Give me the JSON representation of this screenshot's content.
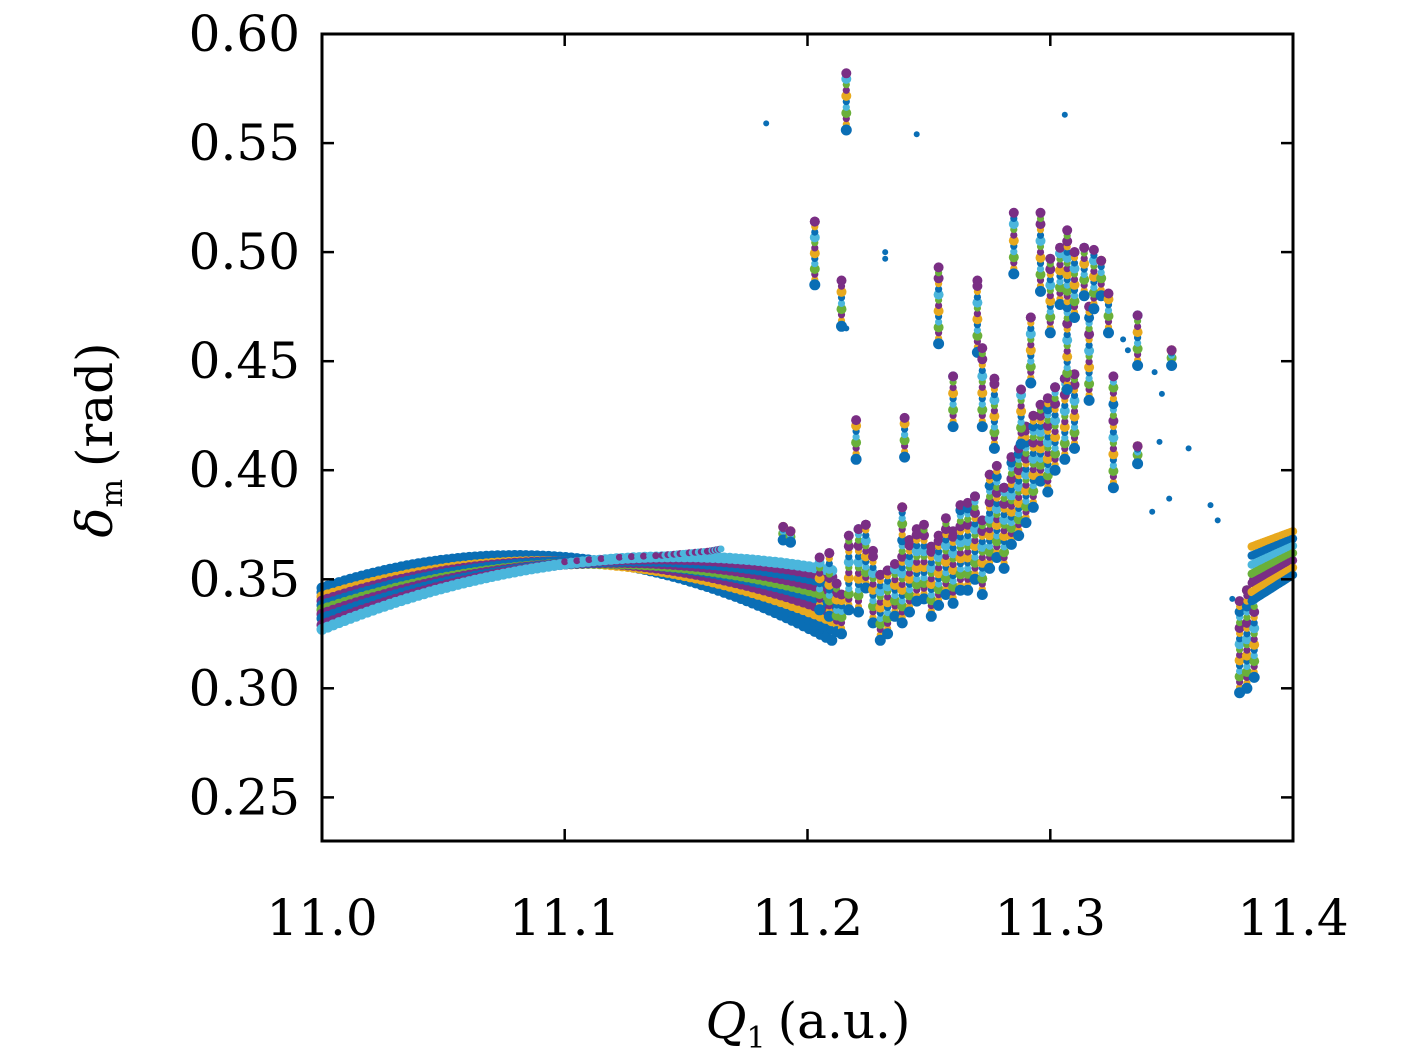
{
  "chart_data": {
    "type": "scatter",
    "title": "",
    "xlabel": {
      "symbol": "Q",
      "subscript": "1",
      "unit": "(a.u.)"
    },
    "ylabel": {
      "symbol": "δ",
      "subscript": "m",
      "unit": "(rad)"
    },
    "xlim": [
      11.0,
      11.4
    ],
    "ylim": [
      0.23,
      0.6
    ],
    "xticks": [
      {
        "value": 11.0,
        "label": "11.0"
      },
      {
        "value": 11.1,
        "label": "11.1"
      },
      {
        "value": 11.2,
        "label": "11.2"
      },
      {
        "value": 11.3,
        "label": "11.3"
      },
      {
        "value": 11.4,
        "label": "11.4"
      }
    ],
    "yticks": [
      {
        "value": 0.25,
        "label": "0.25"
      },
      {
        "value": 0.3,
        "label": "0.30"
      },
      {
        "value": 0.35,
        "label": "0.35"
      },
      {
        "value": 0.4,
        "label": "0.40"
      },
      {
        "value": 0.45,
        "label": "0.45"
      },
      {
        "value": 0.5,
        "label": "0.50"
      },
      {
        "value": 0.55,
        "label": "0.55"
      },
      {
        "value": 0.6,
        "label": "0.60"
      }
    ],
    "grid": false,
    "legend": "none",
    "colors": [
      "#0a6eb5",
      "#e8a91e",
      "#7a2e84",
      "#6ab03a",
      "#4bb6dc"
    ],
    "band": {
      "x_start": 11.0,
      "x_pivot": 11.1,
      "x_end": 11.21,
      "series": [
        {
          "color": "#0a6eb5",
          "y_start": 0.346,
          "y_pivot": 0.36,
          "y_end": 0.322
        },
        {
          "color": "#0a6eb5",
          "y_start": 0.344,
          "y_pivot": 0.359,
          "y_end": 0.327
        },
        {
          "color": "#e8a91e",
          "y_start": 0.342,
          "y_pivot": 0.358,
          "y_end": 0.331
        },
        {
          "color": "#7a2e84",
          "y_start": 0.34,
          "y_pivot": 0.358,
          "y_end": 0.335
        },
        {
          "color": "#0a6eb5",
          "y_start": 0.338,
          "y_pivot": 0.358,
          "y_end": 0.339
        },
        {
          "color": "#6ab03a",
          "y_start": 0.336,
          "y_pivot": 0.357,
          "y_end": 0.342
        },
        {
          "color": "#7a2e84",
          "y_start": 0.334,
          "y_pivot": 0.357,
          "y_end": 0.345
        },
        {
          "color": "#0a6eb5",
          "y_start": 0.332,
          "y_pivot": 0.357,
          "y_end": 0.348
        },
        {
          "color": "#7a2e84",
          "y_start": 0.329,
          "y_pivot": 0.357,
          "y_end": 0.351
        },
        {
          "color": "#4bb6dc",
          "y_start": 0.327,
          "y_pivot": 0.357,
          "y_end": 0.354
        }
      ],
      "tail": {
        "x": [
          11.1,
          11.12,
          11.14,
          11.15,
          11.16,
          11.165
        ],
        "y": [
          0.358,
          0.36,
          0.361,
          0.362,
          0.363,
          0.364
        ]
      }
    },
    "clusters": [
      {
        "x": 11.19,
        "y_min": 0.368,
        "y_max": 0.374
      },
      {
        "x": 11.193,
        "y_min": 0.367,
        "y_max": 0.372
      },
      {
        "x": 11.205,
        "y_min": 0.336,
        "y_max": 0.36
      },
      {
        "x": 11.209,
        "y_min": 0.333,
        "y_max": 0.362
      },
      {
        "x": 11.212,
        "y_min": 0.326,
        "y_max": 0.348
      },
      {
        "x": 11.214,
        "y_min": 0.325,
        "y_max": 0.343
      },
      {
        "x": 11.217,
        "y_min": 0.336,
        "y_max": 0.37
      },
      {
        "x": 11.221,
        "y_min": 0.335,
        "y_max": 0.373
      },
      {
        "x": 11.224,
        "y_min": 0.346,
        "y_max": 0.375
      },
      {
        "x": 11.227,
        "y_min": 0.33,
        "y_max": 0.363
      },
      {
        "x": 11.23,
        "y_min": 0.322,
        "y_max": 0.352
      },
      {
        "x": 11.233,
        "y_min": 0.325,
        "y_max": 0.354
      },
      {
        "x": 11.236,
        "y_min": 0.333,
        "y_max": 0.357
      },
      {
        "x": 11.239,
        "y_min": 0.33,
        "y_max": 0.383
      },
      {
        "x": 11.242,
        "y_min": 0.335,
        "y_max": 0.368
      },
      {
        "x": 11.245,
        "y_min": 0.34,
        "y_max": 0.373
      },
      {
        "x": 11.248,
        "y_min": 0.341,
        "y_max": 0.375
      },
      {
        "x": 11.251,
        "y_min": 0.333,
        "y_max": 0.365
      },
      {
        "x": 11.254,
        "y_min": 0.338,
        "y_max": 0.37
      },
      {
        "x": 11.257,
        "y_min": 0.343,
        "y_max": 0.378
      },
      {
        "x": 11.26,
        "y_min": 0.339,
        "y_max": 0.372
      },
      {
        "x": 11.263,
        "y_min": 0.345,
        "y_max": 0.384
      },
      {
        "x": 11.266,
        "y_min": 0.345,
        "y_max": 0.385
      },
      {
        "x": 11.269,
        "y_min": 0.35,
        "y_max": 0.388
      },
      {
        "x": 11.272,
        "y_min": 0.343,
        "y_max": 0.377
      },
      {
        "x": 11.275,
        "y_min": 0.355,
        "y_max": 0.398
      },
      {
        "x": 11.278,
        "y_min": 0.36,
        "y_max": 0.402
      },
      {
        "x": 11.281,
        "y_min": 0.355,
        "y_max": 0.392
      },
      {
        "x": 11.284,
        "y_min": 0.366,
        "y_max": 0.406
      },
      {
        "x": 11.287,
        "y_min": 0.37,
        "y_max": 0.41
      },
      {
        "x": 11.29,
        "y_min": 0.376,
        "y_max": 0.42
      },
      {
        "x": 11.293,
        "y_min": 0.383,
        "y_max": 0.425
      },
      {
        "x": 11.296,
        "y_min": 0.395,
        "y_max": 0.43
      },
      {
        "x": 11.299,
        "y_min": 0.39,
        "y_max": 0.433
      },
      {
        "x": 11.302,
        "y_min": 0.4,
        "y_max": 0.438
      },
      {
        "x": 11.306,
        "y_min": 0.405,
        "y_max": 0.442
      },
      {
        "x": 11.31,
        "y_min": 0.41,
        "y_max": 0.444
      },
      {
        "x": 11.378,
        "y_min": 0.298,
        "y_max": 0.34
      },
      {
        "x": 11.381,
        "y_min": 0.3,
        "y_max": 0.345
      },
      {
        "x": 11.384,
        "y_min": 0.305,
        "y_max": 0.35
      }
    ],
    "upper_clusters": [
      {
        "x": 11.203,
        "y_min": 0.485,
        "y_max": 0.514
      },
      {
        "x": 11.214,
        "y_min": 0.466,
        "y_max": 0.487
      },
      {
        "x": 11.216,
        "y_min": 0.556,
        "y_max": 0.582
      },
      {
        "x": 11.22,
        "y_min": 0.405,
        "y_max": 0.423
      },
      {
        "x": 11.24,
        "y_min": 0.406,
        "y_max": 0.424
      },
      {
        "x": 11.254,
        "y_min": 0.458,
        "y_max": 0.493
      },
      {
        "x": 11.26,
        "y_min": 0.42,
        "y_max": 0.443
      },
      {
        "x": 11.27,
        "y_min": 0.454,
        "y_max": 0.487
      },
      {
        "x": 11.272,
        "y_min": 0.42,
        "y_max": 0.456
      },
      {
        "x": 11.277,
        "y_min": 0.41,
        "y_max": 0.442
      },
      {
        "x": 11.285,
        "y_min": 0.49,
        "y_max": 0.518
      },
      {
        "x": 11.288,
        "y_min": 0.412,
        "y_max": 0.437
      },
      {
        "x": 11.292,
        "y_min": 0.44,
        "y_max": 0.47
      },
      {
        "x": 11.296,
        "y_min": 0.482,
        "y_max": 0.518
      },
      {
        "x": 11.3,
        "y_min": 0.463,
        "y_max": 0.497
      },
      {
        "x": 11.304,
        "y_min": 0.476,
        "y_max": 0.502
      },
      {
        "x": 11.307,
        "y_min": 0.437,
        "y_max": 0.51
      },
      {
        "x": 11.31,
        "y_min": 0.47,
        "y_max": 0.5
      },
      {
        "x": 11.314,
        "y_min": 0.48,
        "y_max": 0.502
      },
      {
        "x": 11.316,
        "y_min": 0.432,
        "y_max": 0.475
      },
      {
        "x": 11.318,
        "y_min": 0.474,
        "y_max": 0.501
      },
      {
        "x": 11.321,
        "y_min": 0.48,
        "y_max": 0.496
      },
      {
        "x": 11.324,
        "y_min": 0.463,
        "y_max": 0.481
      },
      {
        "x": 11.326,
        "y_min": 0.392,
        "y_max": 0.443
      },
      {
        "x": 11.336,
        "y_min": 0.448,
        "y_max": 0.471
      },
      {
        "x": 11.336,
        "y_min": 0.403,
        "y_max": 0.411
      },
      {
        "x": 11.35,
        "y_min": 0.448,
        "y_max": 0.455
      }
    ],
    "right_band": {
      "x_start": 11.383,
      "x_end": 11.4,
      "y_top_start": 0.365,
      "y_top_end": 0.372,
      "y_bottom_start": 0.34,
      "y_bottom_end": 0.352
    },
    "isolated_points": [
      {
        "x": 11.183,
        "y": 0.559
      },
      {
        "x": 11.245,
        "y": 0.554
      },
      {
        "x": 11.306,
        "y": 0.563
      },
      {
        "x": 11.232,
        "y": 0.497
      },
      {
        "x": 11.232,
        "y": 0.5
      },
      {
        "x": 11.216,
        "y": 0.465
      },
      {
        "x": 11.33,
        "y": 0.46
      },
      {
        "x": 11.332,
        "y": 0.455
      },
      {
        "x": 11.343,
        "y": 0.445
      },
      {
        "x": 11.346,
        "y": 0.435
      },
      {
        "x": 11.345,
        "y": 0.413
      },
      {
        "x": 11.357,
        "y": 0.41
      },
      {
        "x": 11.349,
        "y": 0.387
      },
      {
        "x": 11.342,
        "y": 0.381
      },
      {
        "x": 11.366,
        "y": 0.384
      },
      {
        "x": 11.369,
        "y": 0.377
      },
      {
        "x": 11.375,
        "y": 0.341
      }
    ]
  }
}
